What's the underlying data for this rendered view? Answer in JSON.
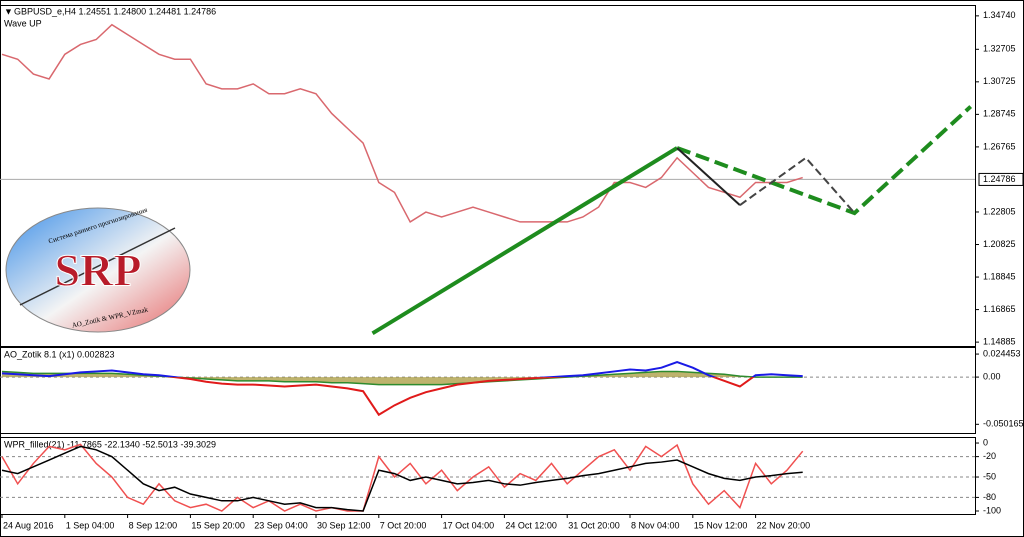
{
  "chart_data": [
    {
      "type": "line",
      "title": "GBPUSD_e,H4  1.24551 1.24800 1.24481 1.24786",
      "subtitle": "Wave UP",
      "logo": {
        "title": "SRP",
        "subtitle": "Система раннего прогнозирования",
        "credit": "AO_Zotik & WPR_VZmak"
      },
      "ylim": [
        1.1471,
        1.3534
      ],
      "yticks": [
        {
          "value": 1.3474,
          "label": "1.34740"
        },
        1.32705,
        1.30725,
        1.28745,
        1.26765,
        1.22805,
        1.20825,
        1.18845,
        1.16865,
        1.14885
      ],
      "current_price": {
        "value": 1.24786,
        "label": "1.24786"
      },
      "series": [
        {
          "color": "#d9686e",
          "values": [
            1.324,
            1.321,
            1.312,
            1.309,
            1.324,
            1.33,
            1.333,
            1.342,
            1.336,
            1.33,
            1.324,
            1.321,
            1.321,
            1.306,
            1.303,
            1.303,
            1.306,
            1.3,
            1.3,
            1.303,
            1.3,
            1.288,
            1.279,
            1.27,
            1.246,
            1.24,
            1.222,
            1.228,
            1.225,
            1.228,
            1.231,
            1.228,
            1.225,
            1.222,
            1.222,
            1.222,
            1.222,
            1.225,
            1.231,
            1.246,
            1.246,
            1.243,
            1.249,
            1.261,
            1.252,
            1.243,
            1.24,
            1.237,
            1.246,
            1.246,
            1.246,
            1.249
          ]
        }
      ],
      "overlays": [
        {
          "color": "#1e8c1e",
          "style": "solid",
          "x": [
            23.6,
            43
          ],
          "values": [
            1.1542,
            1.267
          ]
        },
        {
          "color": "#1e8c1e",
          "style": "dashed",
          "x": [
            43,
            54.3,
            61.7
          ],
          "values": [
            1.267,
            1.2274,
            1.2922
          ]
        },
        {
          "color": "#222222",
          "style": "solid",
          "x": [
            43,
            47
          ],
          "values": [
            1.267,
            1.2322
          ]
        },
        {
          "color": "#444444",
          "style": "dashed",
          "x": [
            47,
            51.2,
            54.3
          ],
          "values": [
            1.2322,
            1.261,
            1.2274
          ]
        }
      ]
    },
    {
      "type": "line",
      "title": "AO_Zotik 8.1 (x1) 0.002823",
      "ylim": [
        -0.0594,
        0.0309
      ],
      "yticks": [
        {
          "value": 0.024453,
          "label": "0.024453"
        },
        {
          "value": 0,
          "label": "0.00"
        },
        {
          "value": -0.050165,
          "label": "-0.050165"
        }
      ],
      "series": [
        {
          "color": "#2e8b2e",
          "fill": "#a89a3c",
          "values": [
            0.006,
            0.005,
            0.004,
            0.004,
            0.004,
            0.004,
            0.004,
            0.004,
            0.003,
            0.002,
            0.001,
            0,
            -0.001,
            -0.002,
            -0.003,
            -0.004,
            -0.004,
            -0.004,
            -0.005,
            -0.005,
            -0.005,
            -0.006,
            -0.006,
            -0.007,
            -0.008,
            -0.008,
            -0.008,
            -0.008,
            -0.008,
            -0.007,
            -0.006,
            -0.005,
            -0.004,
            -0.003,
            -0.002,
            -0.001,
            0,
            0.001,
            0.002,
            0.003,
            0.004,
            0.005,
            0.006,
            0.006,
            0.005,
            0.004,
            0.003,
            0.001,
            0,
            0,
            0,
            0
          ]
        },
        {
          "color": "#1a1ae6",
          "negative_color": "#e01a1a",
          "values": [
            0.004,
            0.003,
            0.002,
            0.001,
            0.003,
            0.005,
            0.006,
            0.007,
            0.005,
            0.003,
            0.002,
            0,
            -0.002,
            -0.005,
            -0.007,
            -0.008,
            -0.008,
            -0.009,
            -0.01,
            -0.009,
            -0.008,
            -0.01,
            -0.012,
            -0.015,
            -0.04,
            -0.03,
            -0.022,
            -0.016,
            -0.012,
            -0.008,
            -0.006,
            -0.004,
            -0.003,
            -0.002,
            -0.001,
            0,
            0.001,
            0.002,
            0.004,
            0.006,
            0.008,
            0.007,
            0.01,
            0.016,
            0.01,
            0.002,
            -0.004,
            -0.01,
            0.002,
            0.003,
            0.002,
            0.001
          ]
        }
      ]
    },
    {
      "type": "line",
      "title": "WPR_filled(21) -11.7865 -22.1340 -52.5013 -39.3029",
      "ylim": [
        -104.4,
        7.4
      ],
      "yticks": [
        0,
        -20,
        -50,
        -80,
        -100
      ],
      "levels": [
        -20,
        -50,
        -80
      ],
      "categories": [
        "24 Aug 2016",
        null,
        null,
        null,
        "1 Sep 04:00",
        null,
        null,
        null,
        "8 Sep 12:00",
        null,
        null,
        null,
        "15 Sep 20:00",
        null,
        null,
        null,
        "23 Sep 04:00",
        null,
        null,
        null,
        "30 Sep 12:00",
        null,
        null,
        null,
        "7 Oct 20:00",
        null,
        null,
        null,
        "17 Oct 04:00",
        null,
        null,
        null,
        "24 Oct 12:00",
        null,
        null,
        null,
        "31 Oct 20:00",
        null,
        null,
        null,
        "8 Nov 04:00",
        null,
        null,
        null,
        "15 Nov 12:00",
        null,
        null,
        null,
        "22 Nov 20:00",
        null,
        null,
        null
      ],
      "series": [
        {
          "color": "#f05050",
          "values": [
            -20,
            -60,
            -30,
            -5,
            -10,
            -2,
            -30,
            -50,
            -80,
            -90,
            -60,
            -85,
            -95,
            -90,
            -100,
            -80,
            -95,
            -85,
            -100,
            -90,
            -100,
            -95,
            -100,
            -100,
            -20,
            -50,
            -30,
            -60,
            -40,
            -70,
            -50,
            -35,
            -65,
            -45,
            -55,
            -30,
            -60,
            -40,
            -20,
            -10,
            -40,
            -5,
            -20,
            -3,
            -60,
            -90,
            -70,
            -95,
            -30,
            -60,
            -40,
            -12
          ]
        },
        {
          "color": "#000000",
          "values": [
            -40,
            -45,
            -35,
            -25,
            -15,
            -5,
            -10,
            -20,
            -40,
            -60,
            -70,
            -65,
            -75,
            -80,
            -85,
            -85,
            -80,
            -85,
            -90,
            -88,
            -95,
            -95,
            -98,
            -100,
            -40,
            -45,
            -55,
            -50,
            -55,
            -60,
            -58,
            -55,
            -60,
            -62,
            -58,
            -55,
            -52,
            -48,
            -45,
            -40,
            -35,
            -30,
            -28,
            -25,
            -35,
            -45,
            -52,
            -55,
            -50,
            -48,
            -45,
            -43
          ]
        }
      ]
    }
  ]
}
